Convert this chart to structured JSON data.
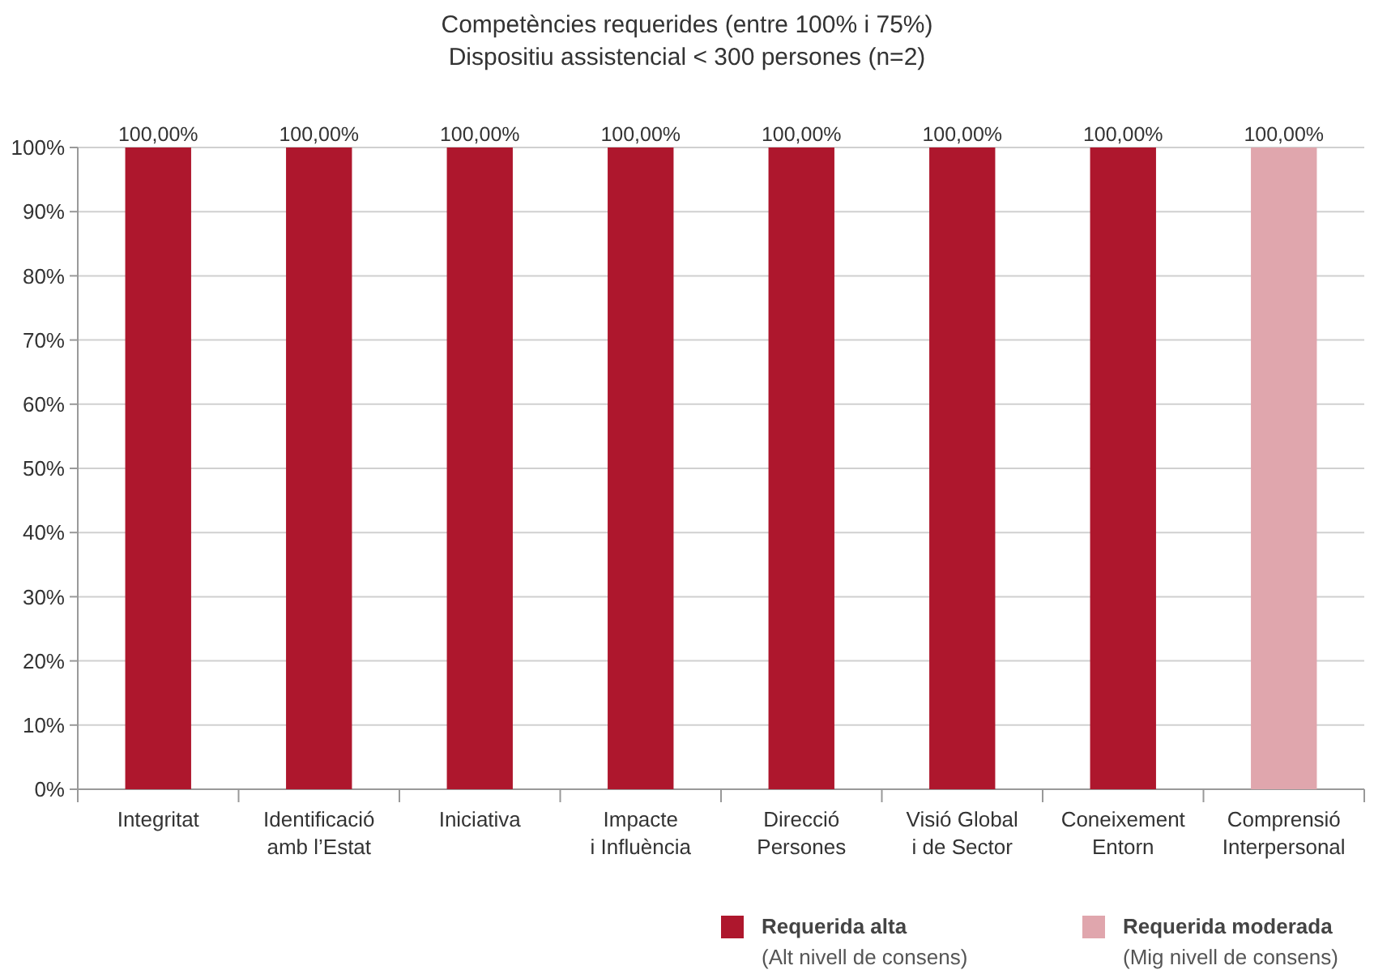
{
  "chart_data": {
    "type": "bar",
    "title": "Competències requerides (entre 100% i 75%)",
    "subtitle": "Dispositiu assistencial < 300 persones (n=2)",
    "categories": [
      "Integritat",
      "Identificació\namb l’Estat",
      "Iniciativa",
      "Impacte\ni Influència",
      "Direcció\nPersones",
      "Visió Global\ni de Sector",
      "Coneixement\nEntorn",
      "Comprensió\nInterpersonal"
    ],
    "series": [
      {
        "name": "Requerida alta\n(Alt nivell de consens)",
        "color": "#ae172d",
        "values": [
          100,
          100,
          100,
          100,
          100,
          100,
          100,
          null
        ],
        "value_labels": [
          "100,00%",
          "100,00%",
          "100,00%",
          "100,00%",
          "100,00%",
          "100,00%",
          "100,00%",
          null
        ]
      },
      {
        "name": "Requerida moderada\n(Mig nivell de consens)",
        "color": "#e0a6ad",
        "values": [
          null,
          null,
          null,
          null,
          null,
          null,
          null,
          100
        ],
        "value_labels": [
          null,
          null,
          null,
          null,
          null,
          null,
          null,
          "100,00%"
        ]
      }
    ],
    "ylim": [
      0,
      100
    ],
    "yticks": [
      {
        "value": 0,
        "label": "0%"
      },
      {
        "value": 10,
        "label": "10%"
      },
      {
        "value": 20,
        "label": "20%"
      },
      {
        "value": 30,
        "label": "30%"
      },
      {
        "value": 40,
        "label": "40%"
      },
      {
        "value": 50,
        "label": "50%"
      },
      {
        "value": 60,
        "label": "60%"
      },
      {
        "value": 70,
        "label": "70%"
      },
      {
        "value": 80,
        "label": "80%"
      },
      {
        "value": 90,
        "label": "90%"
      },
      {
        "value": 100,
        "label": "100%"
      }
    ],
    "grid": "y",
    "legend": "bottom right"
  }
}
